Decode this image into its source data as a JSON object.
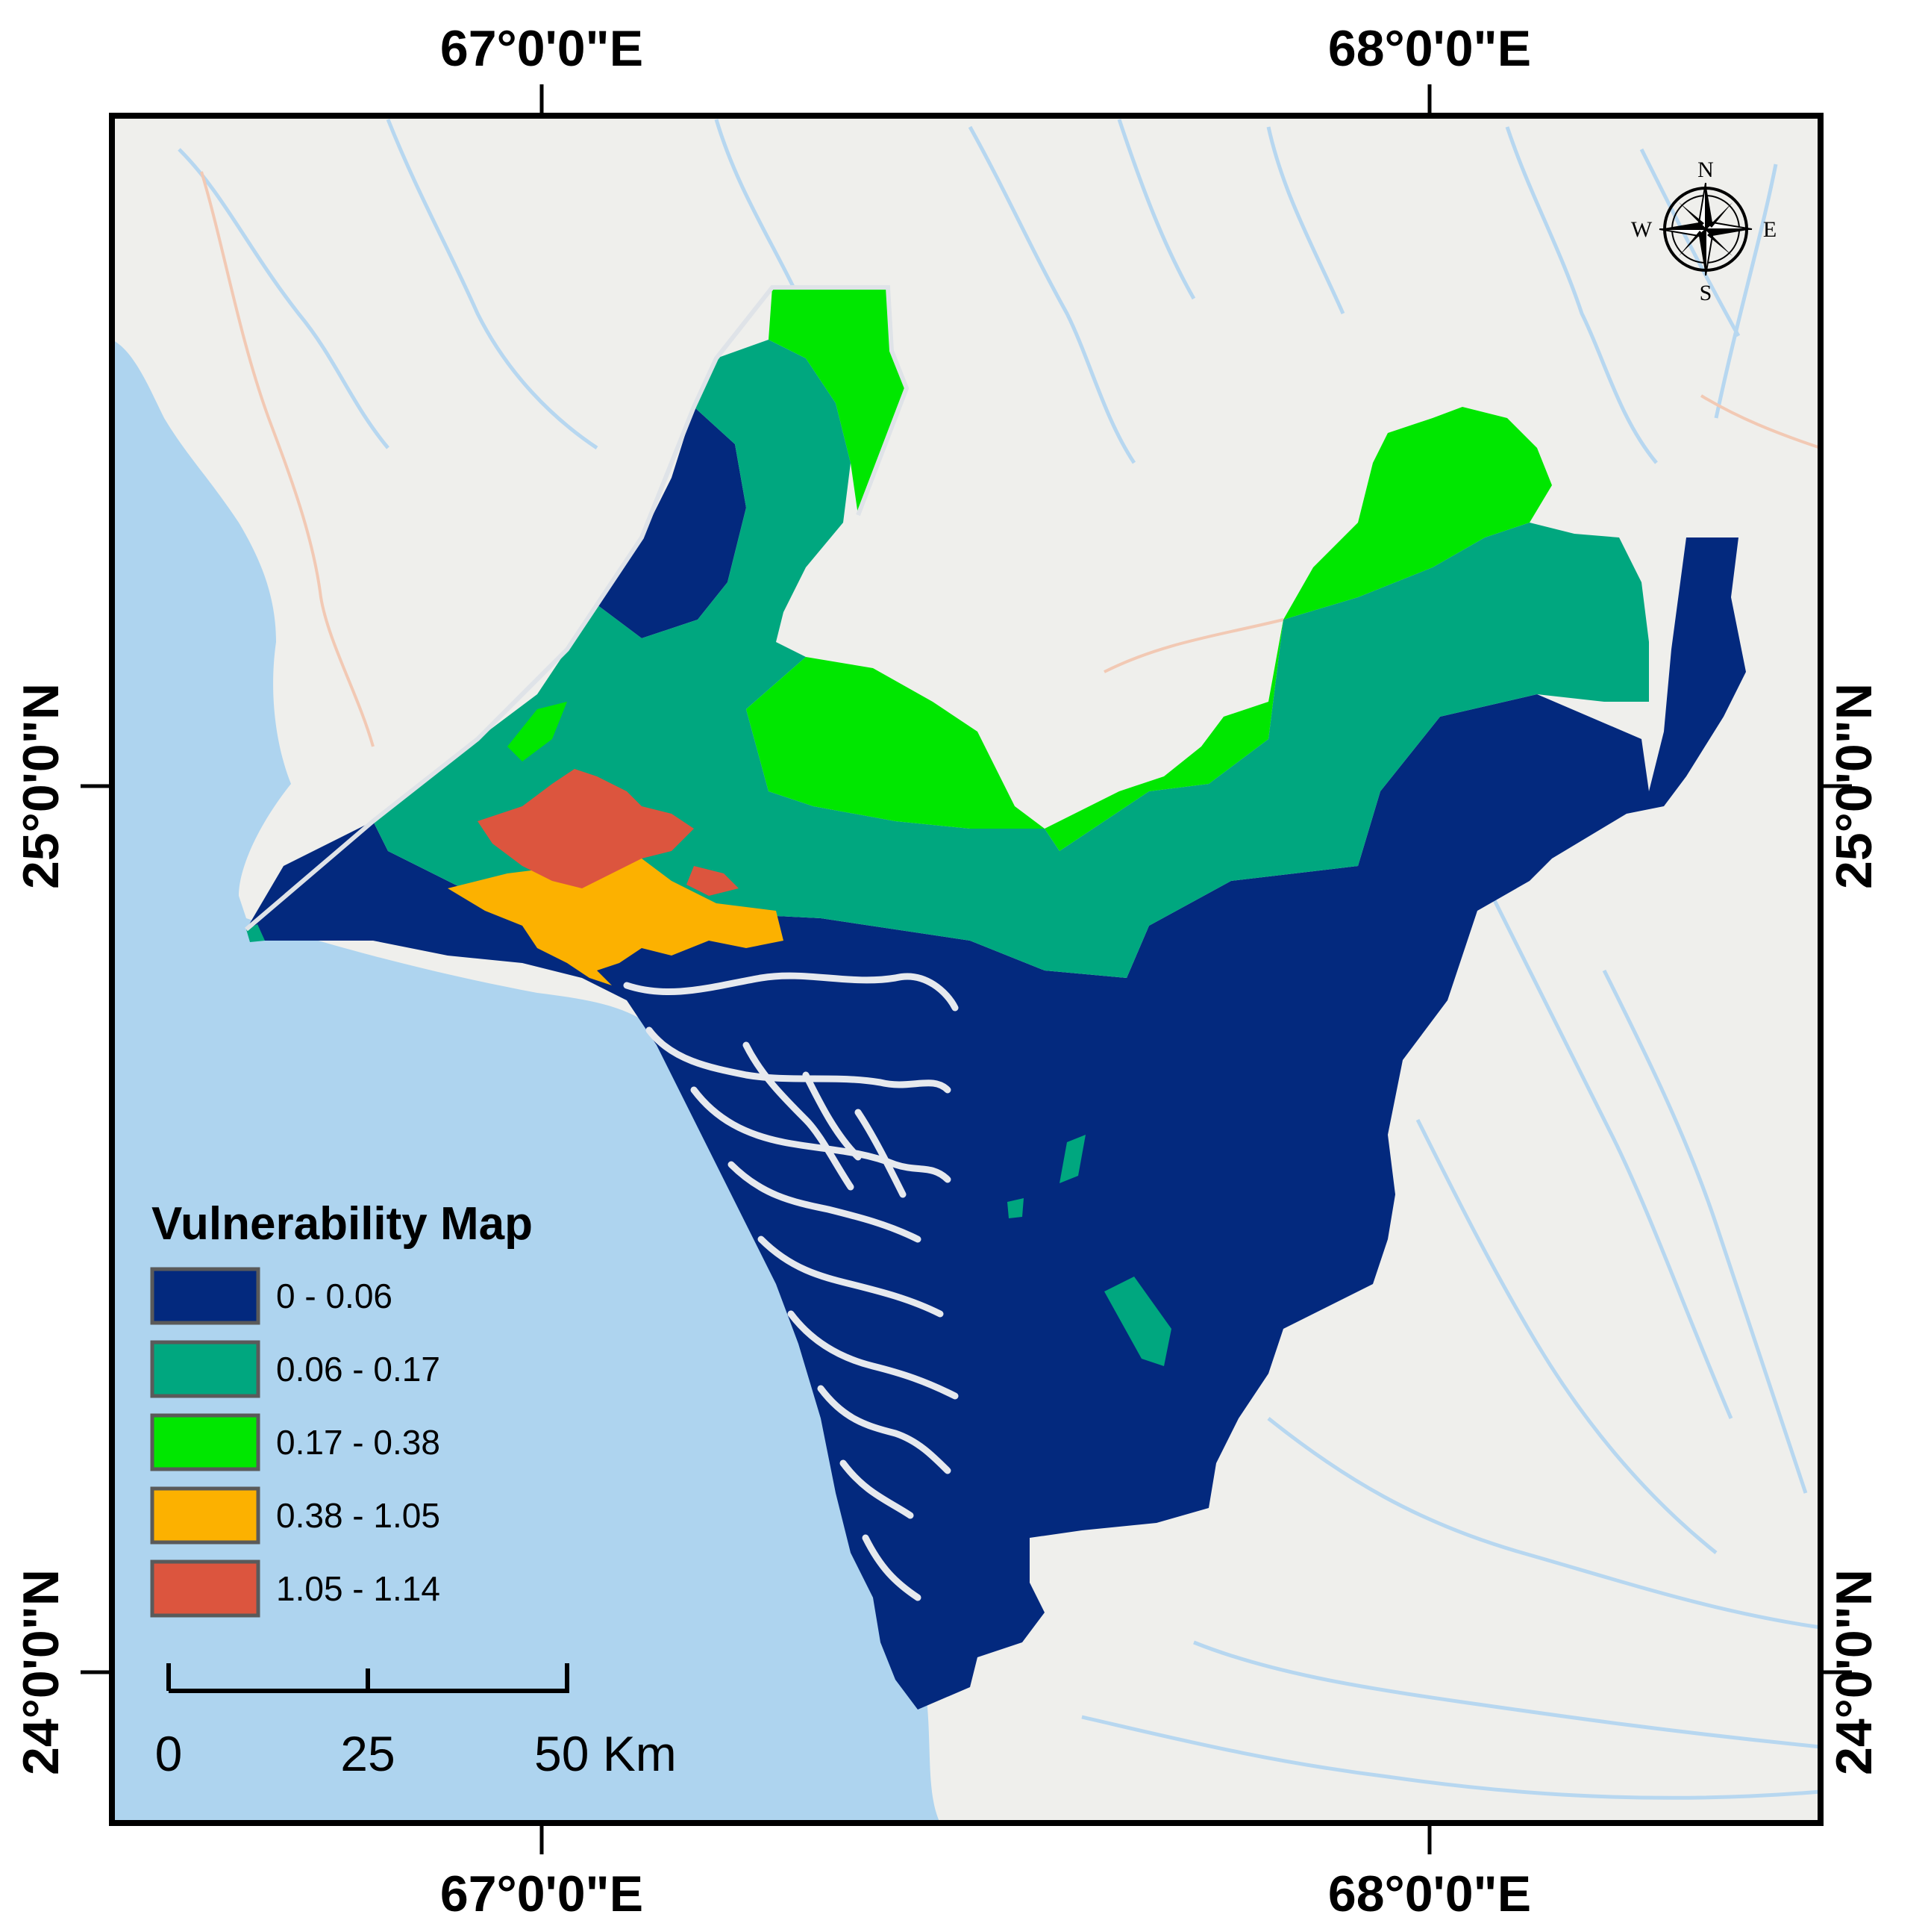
{
  "map": {
    "graticule": {
      "top": [
        "67°0'0\"E",
        "68°0'0\"E"
      ],
      "bottom": [
        "67°0'0\"E",
        "68°0'0\"E"
      ],
      "left": [
        "25°0'0\"N",
        "24°0'0\"N"
      ],
      "right": [
        "25°0'0\"N",
        "24°0'0\"N"
      ]
    },
    "north_arrow": {
      "n": "N",
      "s": "S",
      "e": "E",
      "w": "W",
      "icon": "compass-rose-icon"
    },
    "legend": {
      "title": "Vulnerability Map",
      "classes": [
        {
          "label": "0 - 0.06",
          "color": "#03297e"
        },
        {
          "label": "0.06 - 0.17",
          "color": "#00a77f"
        },
        {
          "label": "0.17 - 0.38",
          "color": "#00e700"
        },
        {
          "label": "0.38 - 1.05",
          "color": "#fcb100"
        },
        {
          "label": "1.05 - 1.14",
          "color": "#dc553e"
        }
      ]
    },
    "scale_bar": {
      "ticks": [
        "0",
        "25",
        "50 Km"
      ]
    },
    "colors": {
      "sea": "#aed4ef",
      "land": "#efefec",
      "rivers": "#b7d7f0",
      "roads": "#f2c9b4",
      "frame": "#000000"
    }
  }
}
